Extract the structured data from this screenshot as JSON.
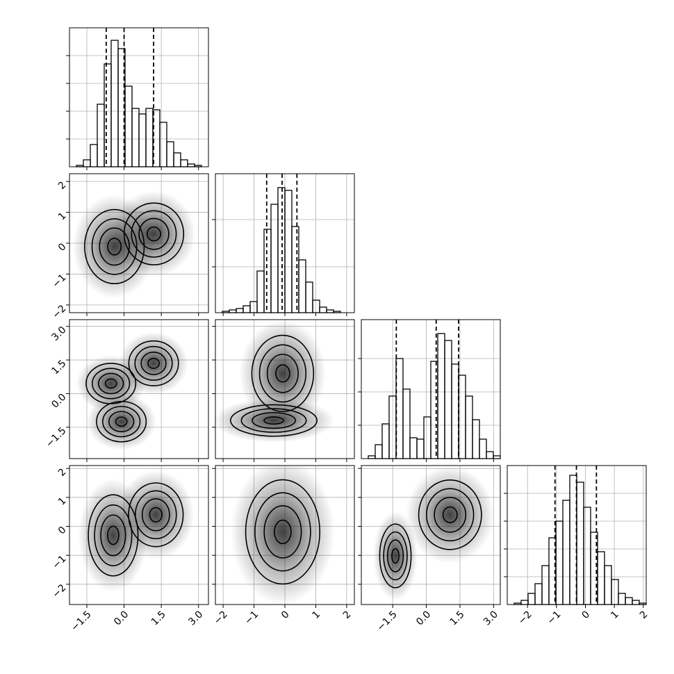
{
  "chart_data": {
    "type": "corner",
    "grid": true,
    "line_color": "#000000",
    "cloud_color": "#000000",
    "axes": [
      {
        "lim": [
          -2.2,
          3.4
        ],
        "ticks": [
          {
            "value": -1.5,
            "label": "−1.5"
          },
          {
            "value": 0,
            "label": "0.0"
          },
          {
            "value": 1.5,
            "label": "1.5"
          },
          {
            "value": 3,
            "label": "3.0"
          }
        ]
      },
      {
        "lim": [
          -2.25,
          2.25
        ],
        "ticks": [
          {
            "value": -2,
            "label": "−2"
          },
          {
            "value": -1,
            "label": "−1"
          },
          0,
          1,
          2
        ]
      },
      {
        "lim": [
          -2.9,
          3.3
        ],
        "ticks": [
          {
            "value": -1.5,
            "label": "−1.5"
          },
          {
            "value": 0,
            "label": "0.0"
          },
          {
            "value": 1.5,
            "label": "1.5"
          },
          {
            "value": 3,
            "label": "3.0"
          }
        ]
      },
      {
        "lim": [
          -2.7,
          2.1
        ],
        "ticks": [
          {
            "value": -2,
            "label": "−2"
          },
          {
            "value": -1,
            "label": "−1"
          },
          0,
          1,
          2
        ]
      }
    ],
    "hists": [
      {
        "ylim": [
          0,
          100
        ],
        "yticks": [
          20,
          40,
          60,
          80
        ],
        "bins": [
          -2.2,
          -1.92,
          -1.64,
          -1.36,
          -1.08,
          -0.8,
          -0.52,
          -0.24,
          0.04,
          0.32,
          0.6,
          0.88,
          1.16,
          1.44,
          1.72,
          2.0,
          2.28,
          2.56,
          2.84,
          3.12,
          3.4
        ],
        "values": [
          0,
          1,
          5,
          16,
          45,
          74,
          91,
          85,
          58,
          42,
          38,
          42,
          41,
          32,
          18,
          10,
          5,
          2,
          1,
          0
        ],
        "quantiles": [
          -0.72,
          0.0,
          1.19
        ]
      },
      {
        "ylim": [
          0,
          100
        ],
        "yticks": [
          33,
          67
        ],
        "bins": [
          -2.25,
          -2.025,
          -1.8,
          -1.575,
          -1.35,
          -1.125,
          -0.9,
          -0.675,
          -0.45,
          -0.225,
          0,
          0.225,
          0.45,
          0.675,
          0.9,
          1.125,
          1.35,
          1.575,
          1.8,
          2.025,
          2.25
        ],
        "values": [
          0,
          1,
          2,
          3,
          5,
          8,
          30,
          60,
          78,
          90,
          88,
          62,
          38,
          22,
          9,
          4,
          2,
          1,
          0,
          0
        ],
        "quantiles": [
          -0.59,
          -0.09,
          0.39
        ]
      },
      {
        "ylim": [
          0,
          100
        ],
        "yticks": [
          24,
          48,
          72
        ],
        "bins": [
          -2.9,
          -2.59,
          -2.28,
          -1.97,
          -1.66,
          -1.35,
          -1.04,
          -0.73,
          -0.42,
          -0.11,
          0.2,
          0.51,
          0.82,
          1.13,
          1.44,
          1.75,
          2.06,
          2.37,
          2.68,
          2.99,
          3.3
        ],
        "values": [
          0,
          2,
          10,
          25,
          45,
          72,
          50,
          15,
          14,
          30,
          70,
          90,
          85,
          68,
          60,
          45,
          28,
          14,
          5,
          2
        ],
        "quantiles": [
          -1.34,
          0.44,
          1.44
        ]
      },
      {
        "ylim": [
          0,
          100
        ],
        "yticks": [
          20,
          40,
          60,
          80
        ],
        "bins": [
          -2.7,
          -2.46,
          -2.22,
          -1.98,
          -1.74,
          -1.5,
          -1.26,
          -1.02,
          -0.78,
          -0.54,
          -0.3,
          -0.06,
          0.18,
          0.42,
          0.66,
          0.9,
          1.14,
          1.38,
          1.62,
          1.86,
          2.1
        ],
        "values": [
          0,
          1,
          3,
          8,
          15,
          28,
          48,
          60,
          75,
          93,
          88,
          70,
          52,
          38,
          28,
          18,
          8,
          5,
          3,
          1
        ],
        "quantiles": [
          -1.05,
          -0.31,
          0.38
        ]
      }
    ],
    "panels": [
      {
        "xaxis": 0,
        "yaxis": 1,
        "clusters": [
          {
            "x": -0.39,
            "y": -0.11,
            "sx": 0.6,
            "sy": 0.6
          },
          {
            "x": 1.2,
            "y": 0.3,
            "sx": 0.6,
            "sy": 0.5
          }
        ]
      },
      {
        "xaxis": 0,
        "yaxis": 2,
        "clusters": [
          {
            "x": -0.53,
            "y": 0.45,
            "sx": 0.5,
            "sy": 0.45
          },
          {
            "x": 1.19,
            "y": 1.35,
            "sx": 0.5,
            "sy": 0.5
          },
          {
            "x": -0.11,
            "y": -1.25,
            "sx": 0.5,
            "sy": 0.45
          }
        ]
      },
      {
        "xaxis": 0,
        "yaxis": 3,
        "clusters": [
          {
            "x": -0.44,
            "y": -0.31,
            "sx": 0.5,
            "sy": 0.7
          },
          {
            "x": 1.28,
            "y": 0.4,
            "sx": 0.55,
            "sy": 0.55
          }
        ]
      },
      {
        "xaxis": 1,
        "yaxis": 2,
        "clusters": [
          {
            "x": -0.07,
            "y": 0.9,
            "sx": 0.5,
            "sy": 0.85
          },
          {
            "x": -0.36,
            "y": -1.2,
            "sx": 0.7,
            "sy": 0.35
          }
        ]
      },
      {
        "xaxis": 1,
        "yaxis": 3,
        "clusters": [
          {
            "x": -0.07,
            "y": -0.19,
            "sx": 0.6,
            "sy": 0.9
          }
        ]
      },
      {
        "xaxis": 2,
        "yaxis": 3,
        "clusters": [
          {
            "x": -1.38,
            "y": -1.02,
            "sx": 0.35,
            "sy": 0.55
          },
          {
            "x": 1.06,
            "y": 0.4,
            "sx": 0.7,
            "sy": 0.6
          }
        ]
      }
    ]
  }
}
